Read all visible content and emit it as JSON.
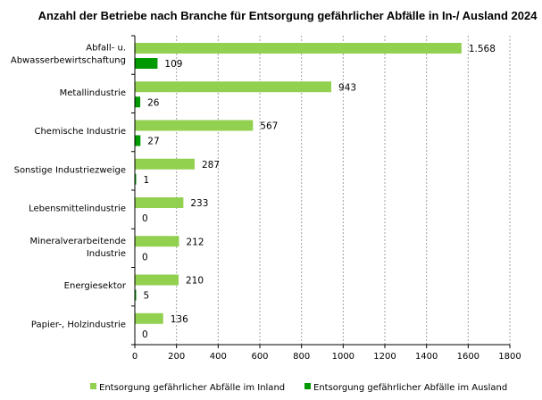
{
  "chart_data": {
    "type": "bar",
    "orientation": "horizontal",
    "title": "Anzahl der Betriebe nach Branche für Entsorgung  gefährlicher Abfälle in In-/ Ausland 2024",
    "xlabel": "",
    "ylabel": "",
    "xlim": [
      0,
      1800
    ],
    "xticks": [
      0,
      200,
      400,
      600,
      800,
      1000,
      1200,
      1400,
      1600,
      1800
    ],
    "grid": "vertical-dashed",
    "legend_position": "bottom",
    "categories": [
      [
        "Abfall- u.",
        "Abwasserbewirtschaftung"
      ],
      [
        "Metallindustrie"
      ],
      [
        "Chemische Industrie"
      ],
      [
        "Sonstige Industriezweige"
      ],
      [
        "Lebensmittelindustrie"
      ],
      [
        "Mineralverarbeitende",
        "Industrie"
      ],
      [
        "Energiesektor"
      ],
      [
        "Papier-, Holzindustrie"
      ]
    ],
    "series": [
      {
        "name": "Entsorgung gefährlicher Abfälle im Inland",
        "color": "#92d050",
        "values": [
          1568,
          943,
          567,
          287,
          233,
          212,
          210,
          136
        ],
        "labels": [
          "1.568",
          "943",
          "567",
          "287",
          "233",
          "212",
          "210",
          "136"
        ]
      },
      {
        "name": "Entsorgung gefährlicher Abfälle im Ausland",
        "color": "#009900",
        "values": [
          109,
          26,
          27,
          1,
          0,
          0,
          5,
          0
        ],
        "labels": [
          "109",
          "26",
          "27",
          "1",
          "0",
          "0",
          "5",
          "0"
        ]
      }
    ]
  }
}
